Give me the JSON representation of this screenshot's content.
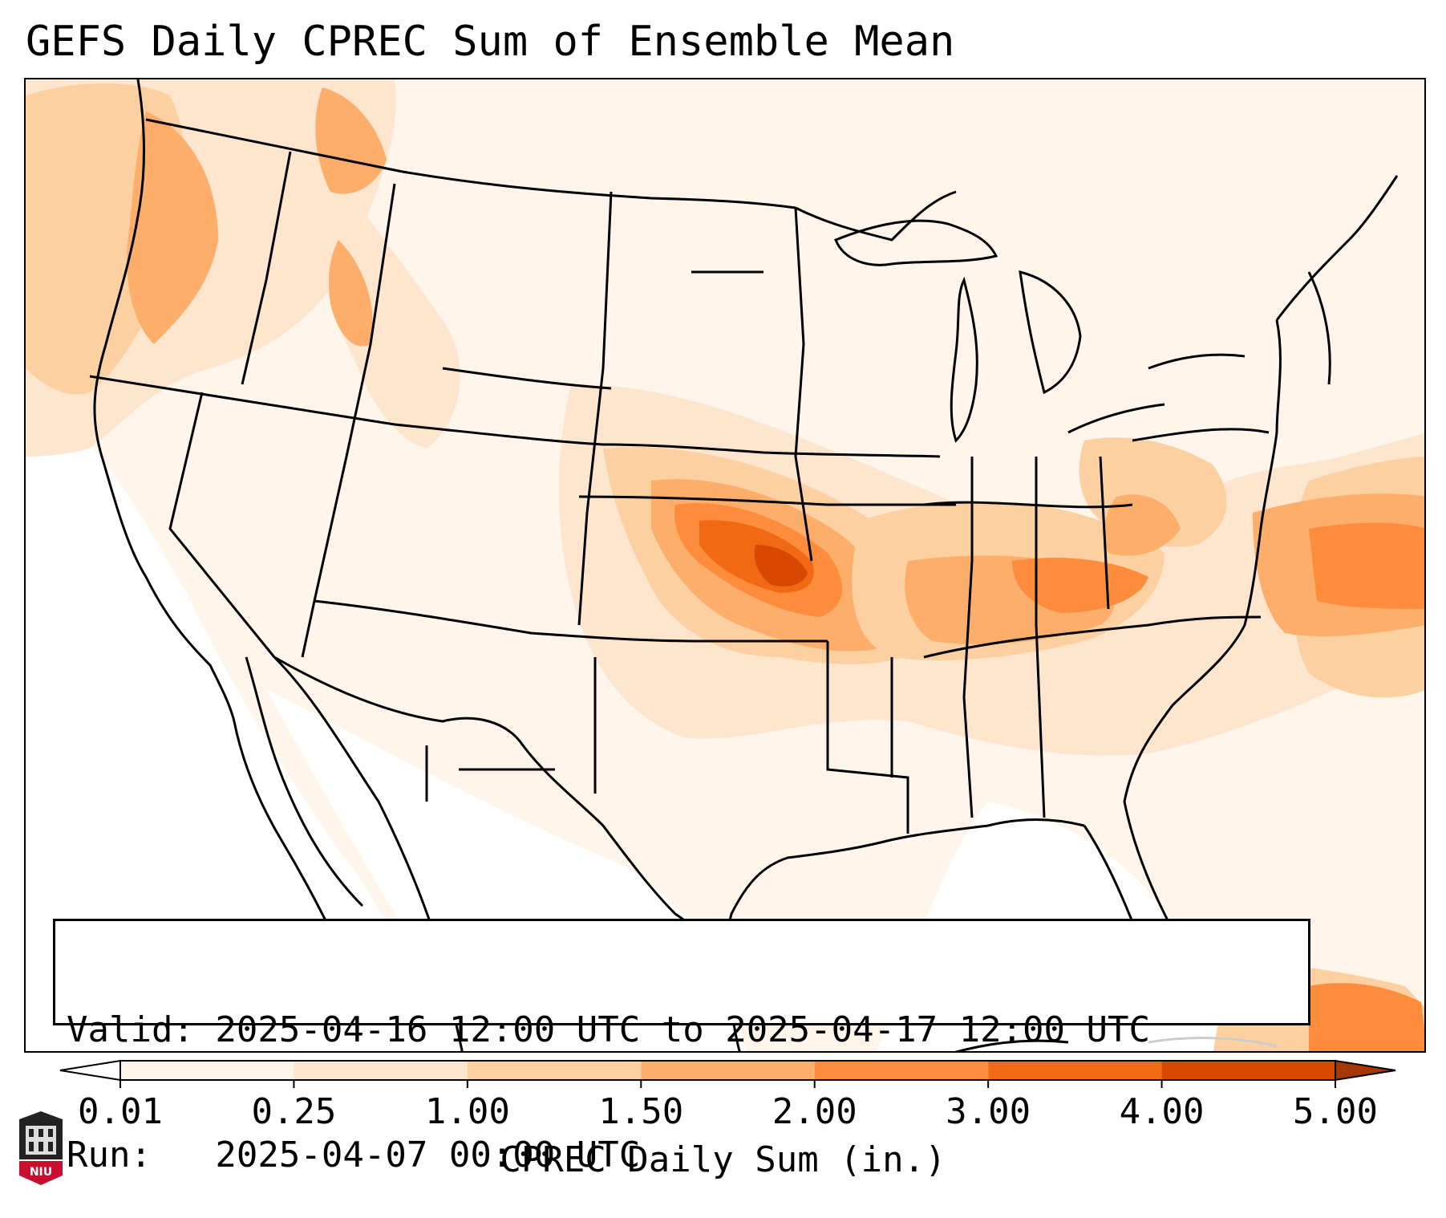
{
  "title": "GEFS Daily CPREC Sum of Ensemble Mean",
  "info": {
    "valid_line": "Valid: 2025-04-16 12:00 UTC to 2025-04-17 12:00 UTC",
    "run_line": "Run:   2025-04-07 00:00 UTC"
  },
  "colorbar": {
    "label": "CPREC Daily Sum (in.)",
    "ticks": [
      "0.01",
      "0.25",
      "1.00",
      "1.50",
      "2.00",
      "3.00",
      "4.00",
      "5.00"
    ],
    "colors": [
      "#fff5eb",
      "#fee6ce",
      "#fdd0a2",
      "#fdae6b",
      "#fd8d3c",
      "#f16913",
      "#d94801"
    ],
    "under_color": "#ffffff",
    "over_color": "#a63603",
    "extend": "both"
  },
  "logo": {
    "text": "NIU",
    "color": "#c8102e"
  }
}
